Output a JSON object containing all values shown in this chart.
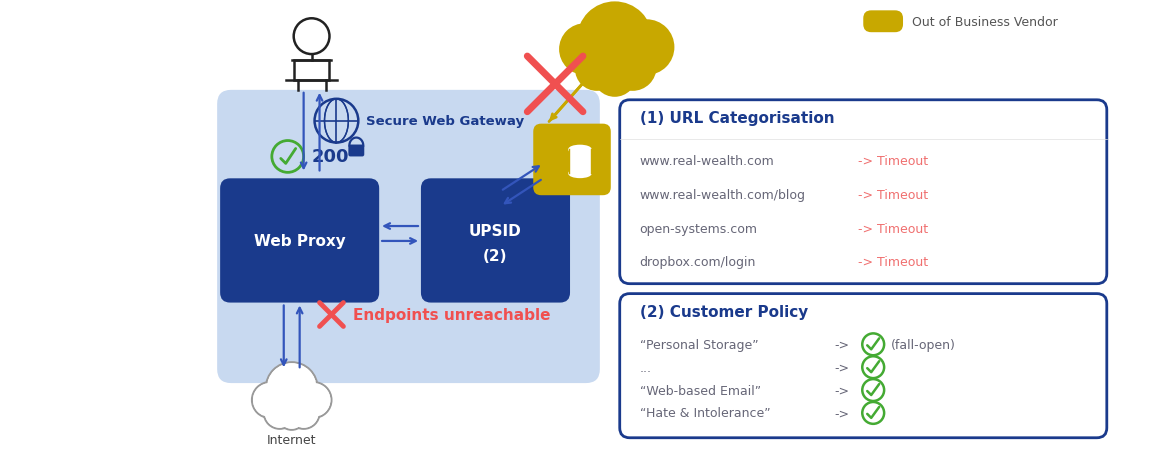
{
  "bg_color": "#ffffff",
  "dark_blue": "#1a3a8c",
  "light_blue": "#c8d9f0",
  "arrow_color": "#3355bb",
  "red_color": "#f05050",
  "gold_color": "#c8a800",
  "green_color": "#44aa33",
  "gray_text": "#666677",
  "swg_label": "Secure Web Gateway",
  "check_label": "200",
  "title_url": "(1) URL Categorisation",
  "url_sites": [
    "www.real-wealth.com",
    "www.real-wealth.com/blog",
    "open-systems.com",
    "dropbox.com/login"
  ],
  "title_policy": "(2) Customer Policy",
  "policy_items": [
    "“Personal Storage”",
    "...",
    "“Web-based Email”",
    "“Hate & Intolerance”"
  ],
  "endpoints_text": "Endpoints unreachable",
  "legend_label": "Out of Business Vendor"
}
